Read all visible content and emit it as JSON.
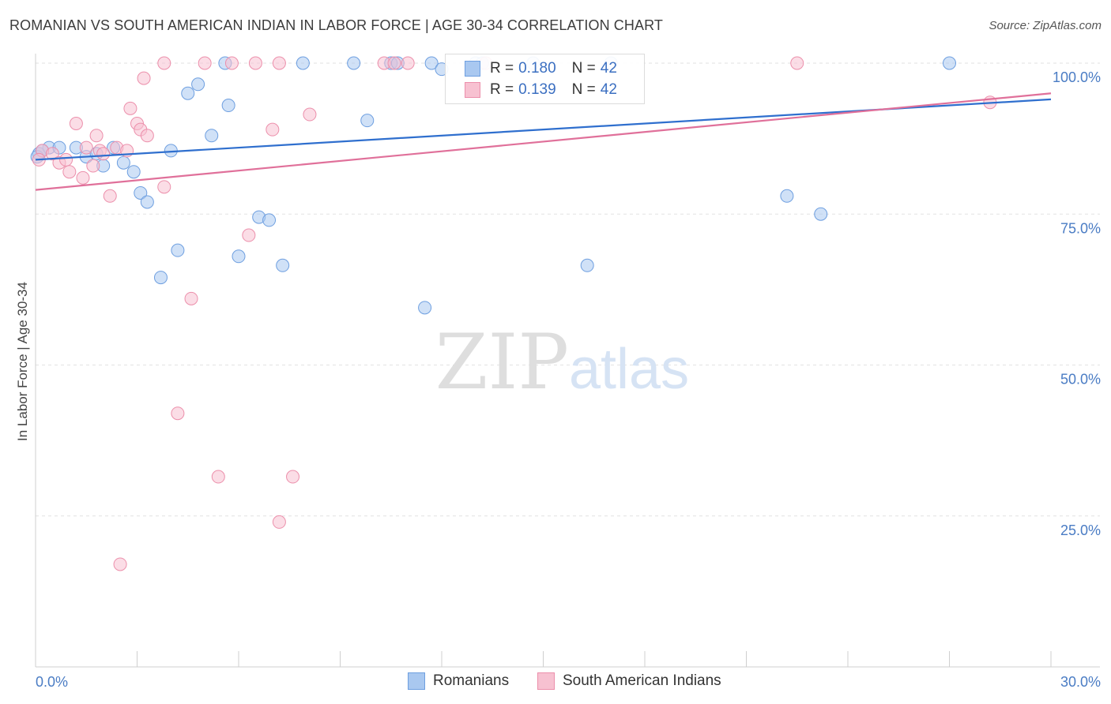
{
  "title": "ROMANIAN VS SOUTH AMERICAN INDIAN IN LABOR FORCE | AGE 30-34 CORRELATION CHART",
  "source": "Source: ZipAtlas.com",
  "watermark": {
    "zip": "ZIP",
    "atlas": "atlas"
  },
  "legend": {
    "rows": [
      {
        "r_label": "R =",
        "r_value": "0.180",
        "n_label": "N =",
        "n_value": "42",
        "color": "#a9c8f0",
        "border": "#6e9fe0"
      },
      {
        "r_label": "R =",
        "r_value": "0.139",
        "n_label": "N =",
        "n_value": "42",
        "color": "#f7c1d1",
        "border": "#ec8fab"
      }
    ]
  },
  "bottom_legend": [
    {
      "label": "Romanians",
      "color": "#a9c8f0",
      "border": "#6e9fe0"
    },
    {
      "label": "South American Indians",
      "color": "#f7c1d1",
      "border": "#ec8fab"
    }
  ],
  "chart_data": {
    "type": "scatter",
    "title": "ROMANIAN VS SOUTH AMERICAN INDIAN IN LABOR FORCE | AGE 30-34 CORRELATION CHART",
    "xlabel": "",
    "ylabel": "In Labor Force | Age 30-34",
    "xlim": [
      0,
      30
    ],
    "ylim": [
      0,
      105
    ],
    "x_tick_labels": [
      "0.0%",
      "30.0%"
    ],
    "y_ticks": [
      25,
      50,
      75,
      100
    ],
    "y_tick_labels": [
      "25.0%",
      "50.0%",
      "75.0%",
      "100.0%"
    ],
    "grid": true,
    "series": [
      {
        "name": "Romanians",
        "color": "#6e9fe0",
        "fill": "#a9c8f0",
        "trend": {
          "x0": 0,
          "y0": 84.0,
          "x1": 30,
          "y1": 94.0,
          "color": "#2f6fce"
        },
        "points": [
          [
            0.1,
            85.0
          ],
          [
            0.4,
            86.0
          ],
          [
            0.7,
            86.0
          ],
          [
            1.2,
            86.0
          ],
          [
            1.5,
            84.5
          ],
          [
            1.8,
            85.0
          ],
          [
            2.0,
            83.0
          ],
          [
            2.3,
            86.0
          ],
          [
            2.6,
            83.5
          ],
          [
            2.9,
            82.0
          ],
          [
            3.1,
            78.5
          ],
          [
            3.3,
            77.0
          ],
          [
            3.7,
            64.5
          ],
          [
            4.0,
            85.5
          ],
          [
            4.2,
            69.0
          ],
          [
            4.5,
            95.0
          ],
          [
            4.8,
            96.5
          ],
          [
            5.2,
            88.0
          ],
          [
            5.6,
            100.0
          ],
          [
            5.7,
            93.0
          ],
          [
            6.0,
            68.0
          ],
          [
            6.6,
            74.5
          ],
          [
            6.9,
            74.0
          ],
          [
            7.3,
            66.5
          ],
          [
            7.9,
            100.0
          ],
          [
            9.4,
            100.0
          ],
          [
            9.8,
            90.5
          ],
          [
            10.5,
            100.0
          ],
          [
            10.7,
            100.0
          ],
          [
            11.5,
            59.5
          ],
          [
            11.7,
            100.0
          ],
          [
            12.0,
            99.0
          ],
          [
            13.0,
            100.0
          ],
          [
            13.2,
            100.0
          ],
          [
            14.7,
            100.0
          ],
          [
            16.3,
            66.5
          ],
          [
            17.0,
            100.0
          ],
          [
            22.2,
            78.0
          ],
          [
            23.2,
            75.0
          ],
          [
            27.0,
            100.0
          ],
          [
            0.05,
            84.5
          ],
          [
            0.2,
            85.5
          ]
        ]
      },
      {
        "name": "South American Indians",
        "color": "#ec8fab",
        "fill": "#f7c1d1",
        "trend": {
          "x0": 0,
          "y0": 79.0,
          "x1": 30,
          "y1": 95.0,
          "color": "#e0709a"
        },
        "points": [
          [
            0.2,
            85.5
          ],
          [
            0.5,
            85.0
          ],
          [
            0.7,
            83.5
          ],
          [
            0.9,
            84.0
          ],
          [
            1.0,
            82.0
          ],
          [
            1.2,
            90.0
          ],
          [
            1.4,
            81.0
          ],
          [
            1.5,
            86.0
          ],
          [
            1.7,
            83.0
          ],
          [
            1.8,
            88.0
          ],
          [
            1.9,
            85.5
          ],
          [
            2.2,
            78.0
          ],
          [
            2.4,
            86.0
          ],
          [
            2.5,
            17.0
          ],
          [
            2.7,
            85.5
          ],
          [
            2.8,
            92.5
          ],
          [
            3.0,
            90.0
          ],
          [
            3.1,
            89.0
          ],
          [
            3.2,
            97.5
          ],
          [
            3.3,
            88.0
          ],
          [
            3.8,
            79.5
          ],
          [
            3.8,
            100.0
          ],
          [
            4.2,
            42.0
          ],
          [
            4.6,
            61.0
          ],
          [
            5.0,
            100.0
          ],
          [
            5.4,
            31.5
          ],
          [
            5.8,
            100.0
          ],
          [
            6.3,
            71.5
          ],
          [
            6.5,
            100.0
          ],
          [
            7.0,
            89.0
          ],
          [
            7.2,
            100.0
          ],
          [
            7.2,
            24.0
          ],
          [
            7.6,
            31.5
          ],
          [
            8.1,
            91.5
          ],
          [
            10.3,
            100.0
          ],
          [
            10.6,
            100.0
          ],
          [
            11.0,
            100.0
          ],
          [
            13.3,
            100.0
          ],
          [
            22.5,
            100.0
          ],
          [
            28.2,
            93.5
          ],
          [
            0.1,
            84.0
          ],
          [
            2.0,
            85.0
          ]
        ]
      }
    ]
  }
}
